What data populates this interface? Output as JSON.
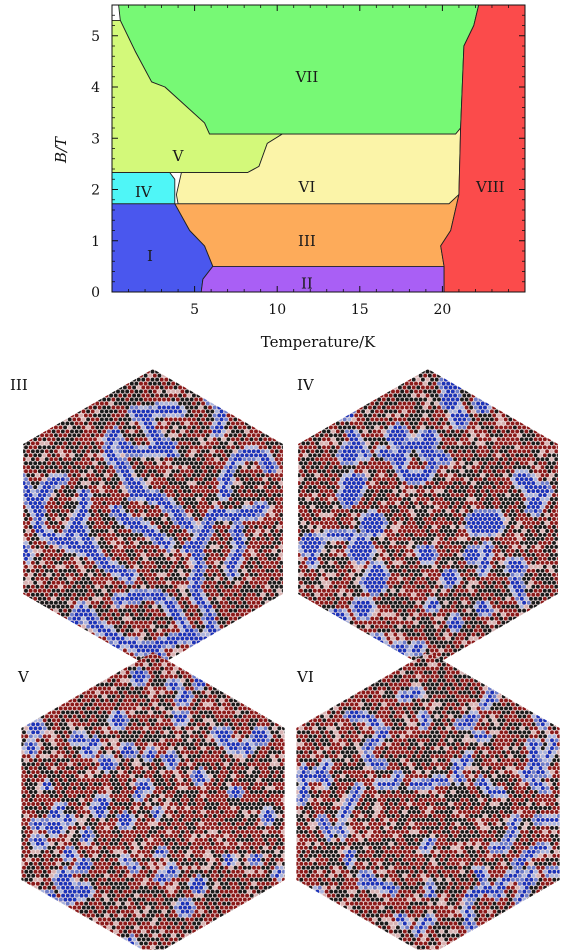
{
  "chart_data": [
    {
      "type": "phase_diagram",
      "xlabel": "Temperature/K",
      "ylabel": "B/T",
      "xlim": [
        0,
        25
      ],
      "ylim": [
        0,
        5.6
      ],
      "xticks": [
        5,
        10,
        15,
        20
      ],
      "yticks": [
        0,
        1,
        2,
        3,
        4,
        5
      ],
      "regions": [
        {
          "label": "VII",
          "color": "#77f975",
          "label_at": [
            11.8,
            4.2
          ],
          "boundary": [
            [
              0.4,
              5.6
            ],
            [
              22.2,
              5.6
            ],
            [
              21.9,
              5.2
            ],
            [
              21.3,
              4.8
            ],
            [
              21.1,
              3.2
            ],
            [
              20.8,
              3.08
            ],
            [
              10.3,
              3.08
            ],
            [
              5.9,
              3.08
            ],
            [
              5.6,
              3.3
            ],
            [
              3.2,
              4.0
            ],
            [
              2.4,
              4.1
            ],
            [
              1.4,
              4.7
            ],
            [
              0.5,
              5.3
            ],
            [
              0.4,
              5.6
            ]
          ]
        },
        {
          "label": "V",
          "color": "#d3f97a",
          "label_at": [
            4.0,
            2.65
          ],
          "boundary": [
            [
              0,
              5.3
            ],
            [
              0.5,
              5.3
            ],
            [
              1.4,
              4.7
            ],
            [
              2.4,
              4.1
            ],
            [
              3.2,
              4.0
            ],
            [
              5.6,
              3.3
            ],
            [
              5.9,
              3.08
            ],
            [
              10.3,
              3.08
            ],
            [
              9.4,
              2.9
            ],
            [
              8.9,
              2.45
            ],
            [
              8.2,
              2.33
            ],
            [
              4.2,
              2.33
            ],
            [
              0,
              2.33
            ]
          ]
        },
        {
          "label": "VI",
          "color": "#fbf4a8",
          "label_at": [
            11.8,
            2.05
          ],
          "boundary": [
            [
              4.2,
              2.33
            ],
            [
              8.2,
              2.33
            ],
            [
              8.9,
              2.45
            ],
            [
              9.4,
              2.9
            ],
            [
              10.3,
              3.08
            ],
            [
              20.8,
              3.08
            ],
            [
              21.1,
              3.2
            ],
            [
              21.0,
              1.9
            ],
            [
              20.4,
              1.72
            ],
            [
              4.0,
              1.72
            ],
            [
              3.9,
              1.9
            ],
            [
              4.2,
              2.33
            ]
          ]
        },
        {
          "label": "IV",
          "color": "#4ff6f7",
          "label_at": [
            1.9,
            1.95
          ],
          "boundary": [
            [
              0,
              2.33
            ],
            [
              3.5,
              2.33
            ],
            [
              3.8,
              2.2
            ],
            [
              3.8,
              1.72
            ],
            [
              0,
              1.72
            ]
          ]
        },
        {
          "label": "III",
          "color": "#fdab5a",
          "label_at": [
            11.8,
            1.0
          ],
          "boundary": [
            [
              3.8,
              1.72
            ],
            [
              20.4,
              1.72
            ],
            [
              21.0,
              1.9
            ],
            [
              20.5,
              1.2
            ],
            [
              19.9,
              0.9
            ],
            [
              20.1,
              0.5
            ],
            [
              6.1,
              0.5
            ],
            [
              5.6,
              0.9
            ],
            [
              4.7,
              1.2
            ],
            [
              3.8,
              1.72
            ]
          ]
        },
        {
          "label": "I",
          "color": "#4a57ee",
          "label_at": [
            2.3,
            0.7
          ],
          "boundary": [
            [
              0,
              1.72
            ],
            [
              3.8,
              1.72
            ],
            [
              4.7,
              1.2
            ],
            [
              5.6,
              0.9
            ],
            [
              6.1,
              0.5
            ],
            [
              5.5,
              0.25
            ],
            [
              5.4,
              0
            ],
            [
              0,
              0
            ]
          ]
        },
        {
          "label": "II",
          "color": "#a95ff5",
          "label_at": [
            11.8,
            0.17
          ],
          "boundary": [
            [
              5.4,
              0
            ],
            [
              20.1,
              0
            ],
            [
              20.1,
              0.5
            ],
            [
              6.1,
              0.5
            ],
            [
              5.5,
              0.25
            ]
          ]
        },
        {
          "label": "VIII",
          "color": "#fb4b4b",
          "label_at": [
            22.9,
            2.05
          ],
          "boundary": [
            [
              22.2,
              5.6
            ],
            [
              25,
              5.6
            ],
            [
              25,
              0
            ],
            [
              20.1,
              0
            ],
            [
              20.1,
              0.5
            ],
            [
              19.9,
              0.9
            ],
            [
              20.5,
              1.2
            ],
            [
              21.0,
              1.9
            ],
            [
              21.1,
              3.2
            ],
            [
              21.3,
              4.8
            ],
            [
              21.9,
              5.2
            ]
          ]
        }
      ]
    },
    {
      "type": "spin_texture",
      "panel_label": "III",
      "pattern": "elongated-stripes",
      "colors": {
        "dominant": "#8b1a1a",
        "dark": "#1a1a1a",
        "minority": "#1c33b8",
        "light": "#a9b4dd"
      }
    },
    {
      "type": "spin_texture",
      "panel_label": "IV",
      "pattern": "isolated-skyrmions",
      "colors": {
        "dominant": "#8b1a1a",
        "dark": "#1a1a1a",
        "minority": "#1c33b8",
        "light": "#a9b4dd"
      }
    },
    {
      "type": "spin_texture",
      "panel_label": "V",
      "pattern": "sparse-small-clusters",
      "colors": {
        "dominant": "#8b1a1a",
        "dark": "#1a1a1a",
        "minority": "#1c33b8",
        "light": "#a9b4dd"
      }
    },
    {
      "type": "spin_texture",
      "panel_label": "VI",
      "pattern": "short-clusters",
      "colors": {
        "dominant": "#8b1a1a",
        "dark": "#1a1a1a",
        "minority": "#1c33b8",
        "light": "#a9b4dd"
      }
    }
  ]
}
